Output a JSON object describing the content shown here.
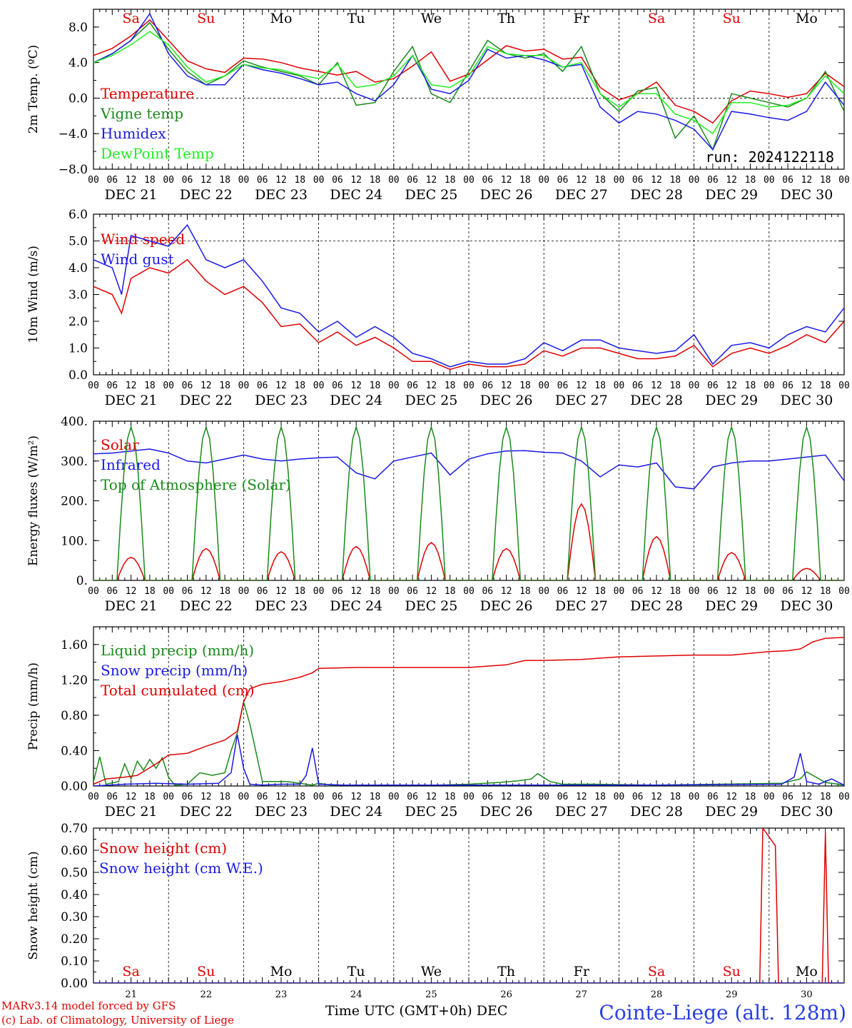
{
  "run_label": "run: 2024122118",
  "x_axis": {
    "hour_ticks": [
      "00",
      "06",
      "12",
      "18"
    ],
    "date_labels": [
      "DEC 21",
      "DEC 22",
      "DEC 23",
      "DEC 24",
      "DEC 25",
      "DEC 26",
      "DEC 27",
      "DEC 28",
      "DEC 29",
      "DEC 30"
    ],
    "day_names": [
      "Sa",
      "Su",
      "Mo",
      "Tu",
      "We",
      "Th",
      "Fr",
      "Sa",
      "Su",
      "Mo"
    ],
    "weekend": [
      true,
      true,
      false,
      false,
      false,
      false,
      false,
      true,
      true,
      false
    ],
    "day_numbers": [
      "21",
      "22",
      "23",
      "24",
      "25",
      "26",
      "27",
      "28",
      "29",
      "30"
    ],
    "title": "Time UTC (GMT+0h)",
    "month": "DEC"
  },
  "footer": {
    "credit1": "MARv3.14 model forced by GFS",
    "credit2": "(c) Lab. of Climatology, University of Liege",
    "station": "Cointe-Liege (alt. 128m)"
  },
  "colors": {
    "red": "#e00000",
    "green": "#1a8a1a",
    "blue": "#1a1ae6",
    "lime": "#22ee22",
    "grid": "#000000"
  },
  "chart_data": [
    {
      "type": "line",
      "ylabel": "2m Temp. (ºC)",
      "ylim": [
        -8,
        10
      ],
      "yticks": [
        -8,
        -4,
        0,
        4,
        8
      ],
      "ytick_labels": [
        "−8.0",
        "−4.0",
        "0.0",
        "4.0",
        "8.0"
      ],
      "ref_line": 0,
      "x_unit": "hours since DEC 21 00 UTC",
      "series": [
        {
          "name": "Temperature",
          "color": "red",
          "x": [
            0,
            6,
            12,
            18,
            24,
            30,
            36,
            42,
            48,
            54,
            60,
            66,
            72,
            78,
            84,
            90,
            96,
            102,
            108,
            114,
            120,
            126,
            132,
            138,
            144,
            150,
            156,
            162,
            168,
            174,
            180,
            186,
            192,
            198,
            204,
            210,
            216,
            222,
            228,
            234,
            240
          ],
          "y": [
            4.8,
            5.6,
            7.0,
            8.8,
            6.5,
            4.2,
            3.3,
            2.9,
            4.5,
            4.4,
            4.0,
            3.4,
            3.0,
            2.6,
            3.0,
            1.8,
            2.2,
            3.6,
            5.2,
            1.9,
            2.7,
            4.3,
            5.9,
            5.3,
            5.5,
            4.4,
            4.6,
            1.2,
            -0.2,
            0.5,
            1.8,
            -0.8,
            -1.5,
            -2.8,
            -0.3,
            0.8,
            0.5,
            0.1,
            0.5,
            2.8,
            1.3
          ]
        },
        {
          "name": "Vigne temp",
          "color": "green",
          "x": [
            0,
            6,
            12,
            18,
            24,
            30,
            36,
            42,
            48,
            54,
            60,
            66,
            72,
            78,
            84,
            90,
            96,
            102,
            108,
            114,
            120,
            126,
            132,
            138,
            144,
            150,
            156,
            162,
            168,
            174,
            180,
            186,
            192,
            198,
            204,
            210,
            216,
            222,
            228,
            234,
            240
          ],
          "y": [
            4.0,
            5.0,
            6.5,
            8.5,
            5.5,
            3.0,
            1.5,
            2.5,
            4.2,
            3.5,
            3.0,
            2.5,
            1.5,
            4.0,
            -0.8,
            -0.5,
            3.0,
            5.8,
            0.5,
            -0.5,
            3.0,
            6.5,
            5.0,
            4.5,
            5.0,
            3.0,
            5.8,
            0.5,
            -1.5,
            0.8,
            1.2,
            -4.5,
            -2.0,
            -5.8,
            0.5,
            0.0,
            -0.5,
            -1.0,
            0.0,
            3.0,
            -1.5
          ]
        },
        {
          "name": "Humidex",
          "color": "blue",
          "x": [
            0,
            6,
            12,
            18,
            24,
            30,
            36,
            42,
            48,
            54,
            60,
            66,
            72,
            78,
            84,
            90,
            96,
            102,
            108,
            114,
            120,
            126,
            132,
            138,
            144,
            150,
            156,
            162,
            168,
            174,
            180,
            186,
            192,
            198,
            204,
            210,
            216,
            222,
            228,
            234,
            240
          ],
          "y": [
            4.0,
            5.0,
            6.5,
            9.5,
            5.0,
            2.5,
            1.5,
            1.5,
            3.8,
            3.2,
            2.8,
            2.2,
            1.5,
            1.8,
            0.5,
            -0.3,
            1.5,
            4.8,
            1.0,
            0.5,
            2.0,
            5.5,
            4.5,
            4.8,
            4.3,
            3.5,
            3.8,
            -1.0,
            -2.8,
            -1.5,
            -1.8,
            -2.5,
            -3.5,
            -5.8,
            -1.5,
            -1.8,
            -2.2,
            -2.5,
            -1.5,
            1.8,
            -0.8
          ]
        },
        {
          "name": "DewPoint Temp",
          "color": "lime",
          "x": [
            0,
            6,
            12,
            18,
            24,
            30,
            36,
            42,
            48,
            54,
            60,
            66,
            72,
            78,
            84,
            90,
            96,
            102,
            108,
            114,
            120,
            126,
            132,
            138,
            144,
            150,
            156,
            162,
            168,
            174,
            180,
            186,
            192,
            198,
            204,
            210,
            216,
            222,
            228,
            234,
            240
          ],
          "y": [
            4.0,
            4.8,
            6.0,
            7.5,
            6.0,
            3.5,
            1.8,
            2.5,
            3.8,
            3.4,
            3.2,
            2.6,
            2.2,
            3.8,
            1.2,
            1.5,
            2.5,
            4.8,
            1.5,
            1.2,
            2.5,
            5.8,
            5.0,
            4.8,
            4.8,
            3.5,
            4.0,
            0.5,
            -1.0,
            0.5,
            0.5,
            -1.8,
            -2.5,
            -4.0,
            -0.5,
            -0.5,
            -1.0,
            -0.8,
            0.0,
            2.5,
            0.5
          ]
        }
      ]
    },
    {
      "type": "line",
      "ylabel": "10m Wind (m/s)",
      "ylim": [
        0,
        6
      ],
      "yticks": [
        0,
        1,
        2,
        3,
        4,
        5,
        6
      ],
      "ytick_labels": [
        "0.0",
        "1.0",
        "2.0",
        "3.0",
        "4.0",
        "5.0",
        "6.0"
      ],
      "ref_line": 5,
      "x_unit": "hours since DEC 21 00 UTC",
      "series": [
        {
          "name": "Wind speed",
          "color": "red",
          "x": [
            0,
            6,
            9,
            12,
            18,
            24,
            30,
            36,
            42,
            48,
            54,
            60,
            66,
            72,
            78,
            84,
            90,
            96,
            102,
            108,
            114,
            120,
            126,
            132,
            138,
            144,
            150,
            156,
            162,
            168,
            174,
            180,
            186,
            192,
            198,
            204,
            210,
            216,
            222,
            228,
            234,
            240
          ],
          "y": [
            3.3,
            3.0,
            2.3,
            3.6,
            4.0,
            3.8,
            4.3,
            3.5,
            3.0,
            3.3,
            2.7,
            1.8,
            1.9,
            1.2,
            1.6,
            1.1,
            1.4,
            1.0,
            0.5,
            0.5,
            0.2,
            0.4,
            0.3,
            0.3,
            0.4,
            0.9,
            0.7,
            1.0,
            1.0,
            0.8,
            0.6,
            0.6,
            0.7,
            1.1,
            0.3,
            0.8,
            1.0,
            0.8,
            1.1,
            1.5,
            1.2,
            2.0
          ]
        },
        {
          "name": "Wind gust",
          "color": "blue",
          "x": [
            0,
            6,
            9,
            12,
            18,
            24,
            30,
            36,
            42,
            48,
            54,
            60,
            66,
            72,
            78,
            84,
            90,
            96,
            102,
            108,
            114,
            120,
            126,
            132,
            138,
            144,
            150,
            156,
            162,
            168,
            174,
            180,
            186,
            192,
            198,
            204,
            210,
            216,
            222,
            228,
            234,
            240
          ],
          "y": [
            4.3,
            4.0,
            3.0,
            5.2,
            5.0,
            4.8,
            5.6,
            4.3,
            4.0,
            4.3,
            3.5,
            2.5,
            2.3,
            1.6,
            2.0,
            1.4,
            1.8,
            1.4,
            0.8,
            0.6,
            0.3,
            0.5,
            0.4,
            0.4,
            0.6,
            1.2,
            0.9,
            1.3,
            1.3,
            1.0,
            0.9,
            0.8,
            0.9,
            1.5,
            0.4,
            1.1,
            1.2,
            1.0,
            1.5,
            1.8,
            1.6,
            2.5
          ]
        }
      ]
    },
    {
      "type": "line",
      "ylabel": "Energy fluxes (W/m²)",
      "ylim": [
        0,
        400
      ],
      "yticks": [
        0,
        100,
        200,
        300,
        400
      ],
      "ytick_labels": [
        "0.",
        "100.",
        "200.",
        "300.",
        "400."
      ],
      "x_unit": "hours since DEC 21 00 UTC",
      "series": [
        {
          "name": "Solar",
          "color": "red",
          "pattern": "daily",
          "peak_hour": 12,
          "half_width": 4.5,
          "peaks": [
            58,
            80,
            72,
            85,
            95,
            80,
            192,
            110,
            70,
            30
          ]
        },
        {
          "name": "Infrared",
          "color": "blue",
          "x": [
            0,
            6,
            12,
            18,
            24,
            30,
            36,
            42,
            48,
            54,
            60,
            66,
            72,
            78,
            84,
            90,
            96,
            102,
            108,
            114,
            120,
            126,
            132,
            138,
            144,
            150,
            156,
            162,
            168,
            174,
            180,
            186,
            192,
            198,
            204,
            210,
            216,
            222,
            228,
            234,
            240
          ],
          "y": [
            318,
            320,
            325,
            330,
            320,
            300,
            295,
            305,
            315,
            305,
            300,
            305,
            308,
            310,
            270,
            255,
            300,
            310,
            320,
            265,
            305,
            318,
            325,
            326,
            322,
            320,
            300,
            260,
            290,
            285,
            295,
            235,
            230,
            285,
            295,
            300,
            300,
            305,
            310,
            315,
            250
          ]
        },
        {
          "name": "Top of Atmosphere (Solar)",
          "color": "green",
          "pattern": "daily",
          "peak_hour": 12,
          "half_width": 4.5,
          "peaks": [
            385,
            385,
            385,
            385,
            385,
            385,
            385,
            385,
            385,
            385
          ]
        }
      ]
    },
    {
      "type": "line",
      "ylabel": "Precip (mm/h)",
      "ylim": [
        0,
        1.8
      ],
      "yticks": [
        0,
        0.4,
        0.8,
        1.2,
        1.6
      ],
      "ytick_labels": [
        "0.00",
        "0.40",
        "0.80",
        "1.20",
        "1.60"
      ],
      "x_unit": "hours since DEC 21 00 UTC",
      "series": [
        {
          "name": "Liquid precip (mm/h)",
          "color": "green",
          "x": [
            0,
            2,
            4,
            8,
            10,
            12,
            14,
            16,
            18,
            20,
            22,
            24,
            26,
            30,
            34,
            38,
            42,
            44,
            46,
            48,
            50,
            54,
            58,
            62,
            66,
            70,
            72,
            76,
            80,
            90,
            110,
            120,
            130,
            136,
            140,
            142,
            146,
            150,
            160,
            180,
            200,
            220,
            226,
            228,
            230,
            234,
            238,
            240
          ],
          "y": [
            0.05,
            0.33,
            0.02,
            0.05,
            0.25,
            0.08,
            0.28,
            0.18,
            0.3,
            0.2,
            0.32,
            0.1,
            0.01,
            0.02,
            0.15,
            0.12,
            0.15,
            0.4,
            0.6,
            0.95,
            0.7,
            0.05,
            0.05,
            0.05,
            0.03,
            0.01,
            0.03,
            0.01,
            0.01,
            0.01,
            0.01,
            0.02,
            0.04,
            0.06,
            0.08,
            0.14,
            0.05,
            0.02,
            0.02,
            0.01,
            0.02,
            0.03,
            0.08,
            0.16,
            0.12,
            0.04,
            0.02,
            0.01
          ]
        },
        {
          "name": "Snow precip (mm/h)",
          "color": "blue",
          "x": [
            0,
            10,
            20,
            30,
            40,
            44,
            46,
            48,
            50,
            54,
            60,
            66,
            68,
            70,
            72,
            80,
            100,
            140,
            180,
            220,
            224,
            226,
            228,
            232,
            236,
            240
          ],
          "y": [
            0,
            0.02,
            0.03,
            0.02,
            0.03,
            0.15,
            0.58,
            0.2,
            0.02,
            0.01,
            0.02,
            0.02,
            0.12,
            0.43,
            0.02,
            0.01,
            0.01,
            0.01,
            0.01,
            0.02,
            0.1,
            0.37,
            0.05,
            0.02,
            0.08,
            0.01
          ]
        },
        {
          "name": "Total cumulated (cm)",
          "color": "red",
          "x": [
            0,
            4,
            10,
            14,
            20,
            24,
            30,
            36,
            42,
            46,
            48,
            50,
            54,
            60,
            66,
            70,
            72,
            84,
            96,
            108,
            120,
            132,
            138,
            144,
            156,
            168,
            180,
            192,
            204,
            216,
            222,
            226,
            230,
            234,
            240
          ],
          "y": [
            0.02,
            0.08,
            0.1,
            0.12,
            0.25,
            0.35,
            0.37,
            0.45,
            0.52,
            0.62,
            0.95,
            1.1,
            1.15,
            1.18,
            1.23,
            1.28,
            1.33,
            1.34,
            1.34,
            1.34,
            1.34,
            1.37,
            1.42,
            1.42,
            1.43,
            1.46,
            1.47,
            1.48,
            1.48,
            1.52,
            1.53,
            1.55,
            1.63,
            1.67,
            1.68
          ]
        }
      ]
    },
    {
      "type": "line",
      "ylabel": "Snow height (cm)",
      "ylim": [
        0,
        0.7
      ],
      "yticks": [
        0,
        0.1,
        0.2,
        0.3,
        0.4,
        0.5,
        0.6,
        0.7
      ],
      "ytick_labels": [
        "0.00",
        "0.10",
        "0.20",
        "0.30",
        "0.40",
        "0.50",
        "0.60",
        "0.70"
      ],
      "x_unit": "hours since DEC 21 00 UTC",
      "series": [
        {
          "name": "Snow height (cm)",
          "color": "red",
          "x": [
            0,
            213,
            214,
            218,
            219,
            233,
            234,
            235,
            240
          ],
          "y": [
            0,
            0,
            0.7,
            0.62,
            0,
            0,
            0.68,
            0,
            0
          ]
        },
        {
          "name": "Snow height (cm W.E.)",
          "color": "blue",
          "x": [
            0,
            240
          ],
          "y": [
            0,
            0
          ]
        }
      ]
    }
  ]
}
